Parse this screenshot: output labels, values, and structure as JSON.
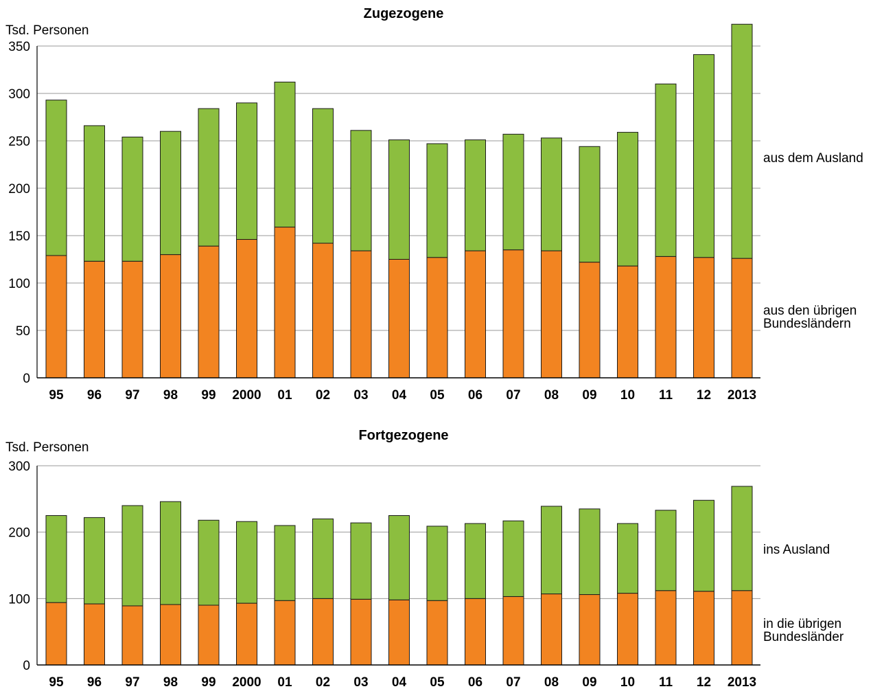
{
  "colors": {
    "foreign": "#8cbe3f",
    "domestic": "#f28421",
    "grid": "#9a9a9a",
    "outline": "#1a1a1a"
  },
  "chart_data": [
    {
      "type": "bar",
      "stacked": true,
      "title": "Zugezogene",
      "ylabel": "Tsd. Personen",
      "ylim": [
        0,
        350
      ],
      "yticks": [
        0,
        50,
        100,
        150,
        200,
        250,
        300,
        350
      ],
      "grid": true,
      "categories": [
        "95",
        "96",
        "97",
        "98",
        "99",
        "2000",
        "01",
        "02",
        "03",
        "04",
        "05",
        "06",
        "07",
        "08",
        "09",
        "10",
        "11",
        "12",
        "2013"
      ],
      "series": [
        {
          "name": "aus den übrigen Bundesländern",
          "color": "#f28421",
          "values": [
            129,
            123,
            123,
            130,
            139,
            146,
            159,
            142,
            134,
            125,
            127,
            134,
            135,
            134,
            122,
            118,
            128,
            127,
            126
          ]
        },
        {
          "name": "aus dem Ausland",
          "color": "#8cbe3f",
          "values": [
            164,
            143,
            131,
            130,
            145,
            144,
            153,
            142,
            127,
            126,
            120,
            117,
            122,
            119,
            122,
            141,
            182,
            214,
            247
          ]
        }
      ]
    },
    {
      "type": "bar",
      "stacked": true,
      "title": "Fortgezogene",
      "ylabel": "Tsd. Personen",
      "ylim": [
        0,
        300
      ],
      "yticks": [
        0,
        100,
        200,
        300
      ],
      "grid": true,
      "categories": [
        "95",
        "96",
        "97",
        "98",
        "99",
        "2000",
        "01",
        "02",
        "03",
        "04",
        "05",
        "06",
        "07",
        "08",
        "09",
        "10",
        "11",
        "12",
        "2013"
      ],
      "series": [
        {
          "name": "in die übrigen Bundesländer",
          "color": "#f28421",
          "values": [
            94,
            92,
            89,
            91,
            90,
            93,
            97,
            100,
            99,
            98,
            97,
            100,
            103,
            107,
            106,
            108,
            112,
            111,
            112
          ]
        },
        {
          "name": "ins Ausland",
          "color": "#8cbe3f",
          "values": [
            131,
            130,
            151,
            155,
            128,
            123,
            113,
            120,
            115,
            127,
            112,
            113,
            114,
            132,
            129,
            105,
            121,
            137,
            157
          ]
        }
      ]
    }
  ]
}
